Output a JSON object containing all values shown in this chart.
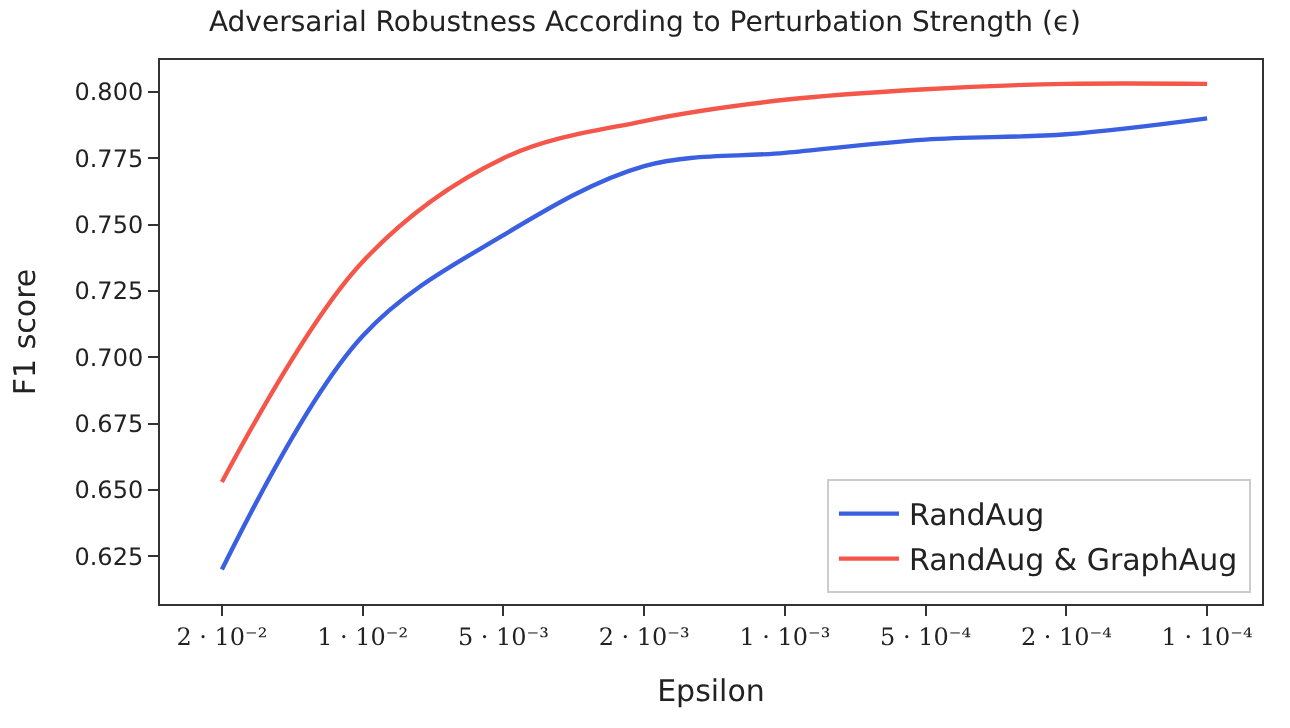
{
  "chart_data": {
    "type": "line",
    "title": "Adversarial Robustness According to Perturbation Strength (ϵ)",
    "xlabel": "Epsilon",
    "ylabel": "F1 score",
    "categories": [
      "2 · 10⁻²",
      "1 · 10⁻²",
      "5 · 10⁻³",
      "2 · 10⁻³",
      "1 · 10⁻³",
      "5 · 10⁻⁴",
      "2 · 10⁻⁴",
      "1 · 10⁻⁴"
    ],
    "ylim": [
      0.607,
      0.812
    ],
    "yticks": [
      {
        "value": 0.625,
        "label": "0.625"
      },
      {
        "value": 0.65,
        "label": "0.650"
      },
      {
        "value": 0.675,
        "label": "0.675"
      },
      {
        "value": 0.7,
        "label": "0.700"
      },
      {
        "value": 0.725,
        "label": "0.725"
      },
      {
        "value": 0.75,
        "label": "0.750"
      },
      {
        "value": 0.775,
        "label": "0.775"
      },
      {
        "value": 0.8,
        "label": "0.800"
      }
    ],
    "legend": "bottom right",
    "marker": "none",
    "line_style": "solid",
    "series": [
      {
        "name": "RandAug",
        "color": "#3a5fe0",
        "values": [
          0.62,
          0.708,
          0.746,
          0.772,
          0.777,
          0.782,
          0.784,
          0.79
        ]
      },
      {
        "name": "RandAug & GraphAug",
        "color": "#f5564a",
        "values": [
          0.653,
          0.736,
          0.775,
          0.789,
          0.797,
          0.801,
          0.803,
          0.803
        ]
      }
    ]
  }
}
